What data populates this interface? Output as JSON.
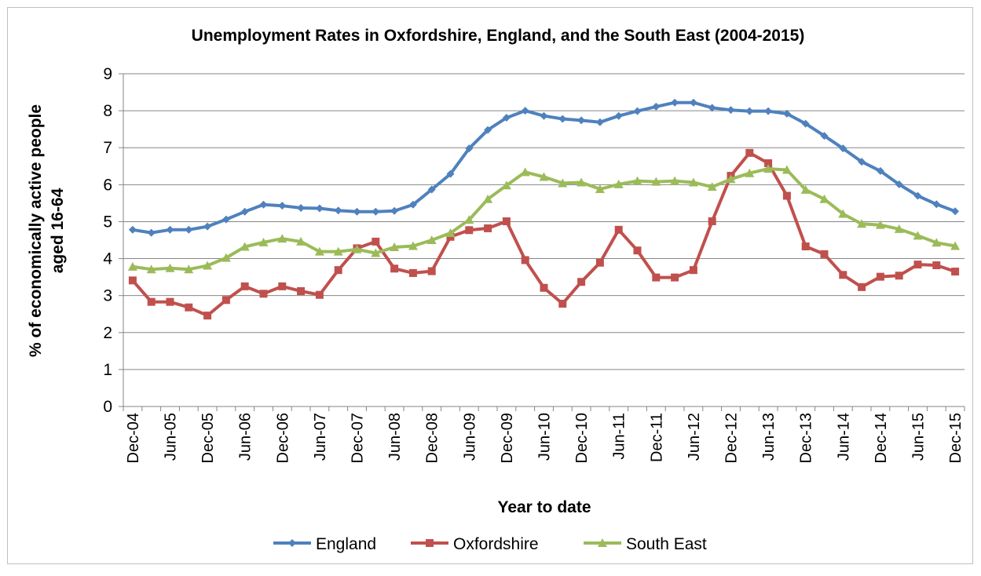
{
  "chart_data": {
    "type": "line",
    "title": "Unemployment Rates in Oxfordshire, England, and the South East (2004-2015)",
    "xlabel": "Year to date",
    "ylabel_lines": [
      "% of economically active people",
      "aged 16-64"
    ],
    "ylim": [
      0,
      9
    ],
    "yticks": [
      "0",
      "1",
      "2",
      "3",
      "4",
      "5",
      "6",
      "7",
      "8",
      "9"
    ],
    "grid": "horizontal",
    "legend_position": "bottom",
    "x_tick_labels": [
      "Dec-04",
      "Jun-05",
      "Dec-05",
      "Jun-06",
      "Dec-06",
      "Jun-07",
      "Dec-07",
      "Jun-08",
      "Dec-08",
      "Jun-09",
      "Dec-09",
      "Jun-10",
      "Dec-10",
      "Jun-11",
      "Dec-11",
      "Jun-12",
      "Dec-12",
      "Jun-13",
      "Dec-13",
      "Jun-14",
      "Dec-14",
      "Jun-15",
      "Dec-15"
    ],
    "x": [
      "Dec-04",
      "Mar-05",
      "Jun-05",
      "Sep-05",
      "Dec-05",
      "Mar-06",
      "Jun-06",
      "Sep-06",
      "Dec-06",
      "Mar-07",
      "Jun-07",
      "Sep-07",
      "Dec-07",
      "Mar-08",
      "Jun-08",
      "Sep-08",
      "Dec-08",
      "Mar-09",
      "Jun-09",
      "Sep-09",
      "Dec-09",
      "Mar-10",
      "Jun-10",
      "Sep-10",
      "Dec-10",
      "Mar-11",
      "Jun-11",
      "Sep-11",
      "Dec-11",
      "Mar-12",
      "Jun-12",
      "Sep-12",
      "Dec-12",
      "Mar-13",
      "Jun-13",
      "Sep-13",
      "Dec-13",
      "Mar-14",
      "Jun-14",
      "Sep-14",
      "Dec-14",
      "Mar-15",
      "Jun-15",
      "Sep-15",
      "Dec-15"
    ],
    "series": [
      {
        "name": "England",
        "color": "#4f81bd",
        "marker": "diamond",
        "values": [
          4.78,
          4.7,
          4.78,
          4.78,
          4.87,
          5.06,
          5.27,
          5.46,
          5.43,
          5.37,
          5.36,
          5.3,
          5.27,
          5.27,
          5.29,
          5.46,
          5.87,
          6.29,
          6.98,
          7.48,
          7.81,
          8.0,
          7.86,
          7.78,
          7.74,
          7.69,
          7.86,
          7.99,
          8.11,
          8.22,
          8.22,
          8.08,
          8.02,
          7.99,
          7.99,
          7.92,
          7.65,
          7.32,
          6.98,
          6.62,
          6.37,
          6.01,
          5.7,
          5.47,
          5.28
        ]
      },
      {
        "name": "Oxfordshire",
        "color": "#c0504d",
        "marker": "square",
        "values": [
          3.41,
          2.83,
          2.83,
          2.68,
          2.46,
          2.88,
          3.25,
          3.05,
          3.25,
          3.12,
          3.02,
          3.69,
          4.28,
          4.46,
          3.73,
          3.61,
          3.66,
          4.59,
          4.77,
          4.82,
          5.01,
          3.96,
          3.21,
          2.78,
          3.37,
          3.89,
          4.78,
          4.22,
          3.49,
          3.49,
          3.69,
          5.01,
          6.24,
          6.86,
          6.58,
          5.7,
          4.33,
          4.12,
          3.56,
          3.23,
          3.51,
          3.54,
          3.84,
          3.82,
          3.65
        ]
      },
      {
        "name": "South East",
        "color": "#9bbb59",
        "marker": "triangle",
        "values": [
          3.78,
          3.71,
          3.74,
          3.71,
          3.81,
          4.02,
          4.32,
          4.44,
          4.54,
          4.46,
          4.19,
          4.19,
          4.25,
          4.15,
          4.31,
          4.34,
          4.5,
          4.69,
          5.05,
          5.61,
          5.98,
          6.34,
          6.21,
          6.04,
          6.06,
          5.88,
          6.01,
          6.1,
          6.08,
          6.1,
          6.06,
          5.94,
          6.15,
          6.31,
          6.43,
          6.4,
          5.86,
          5.61,
          5.21,
          4.94,
          4.91,
          4.8,
          4.62,
          4.43,
          4.34
        ]
      }
    ]
  }
}
